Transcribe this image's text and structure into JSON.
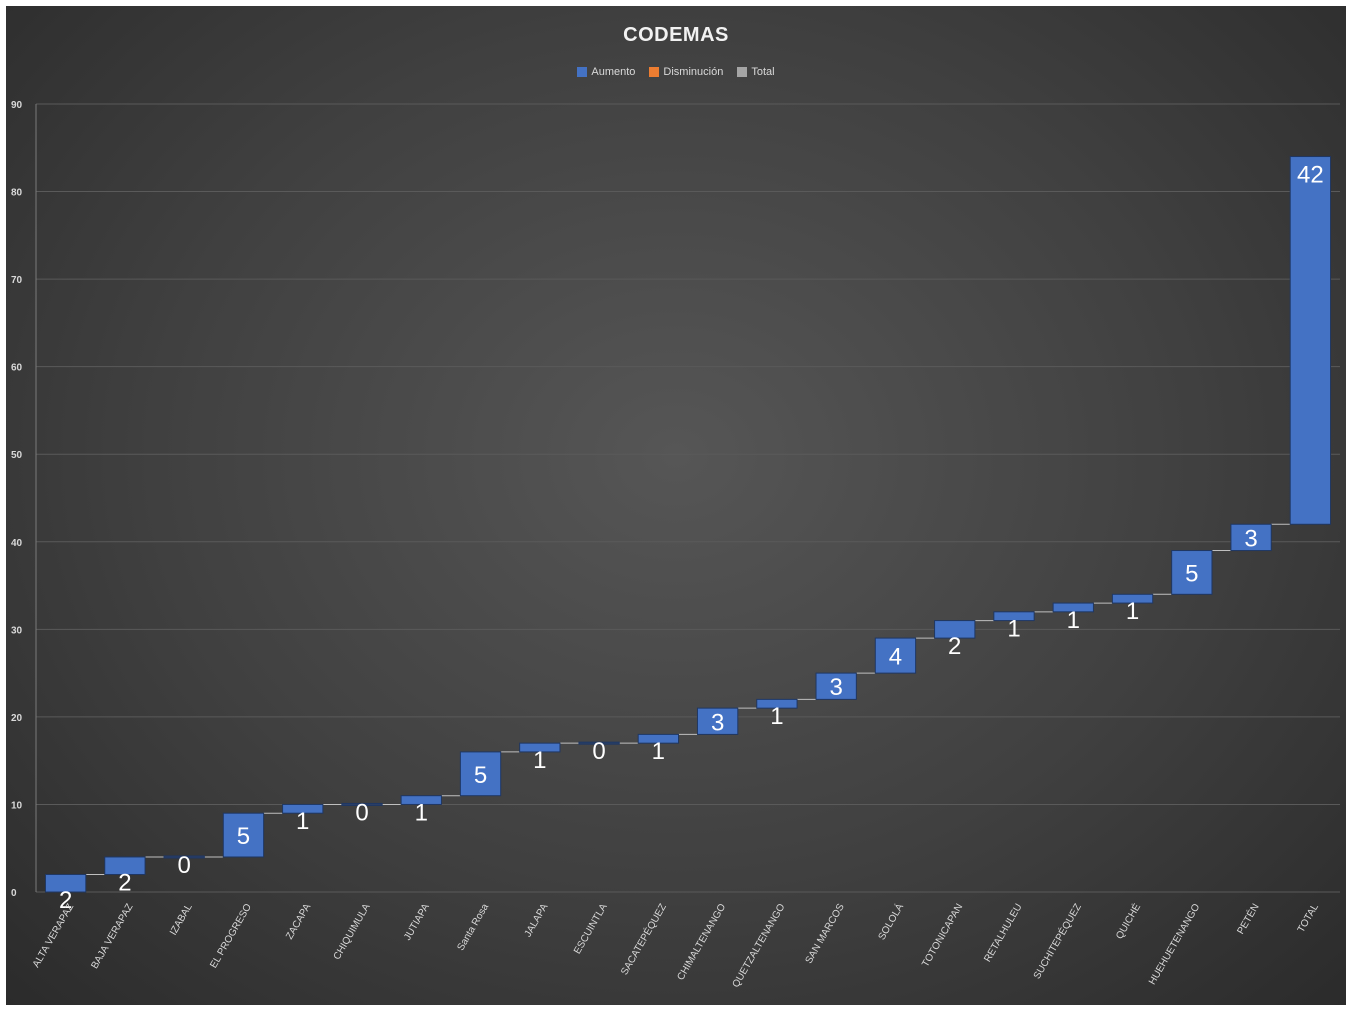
{
  "chart_data": {
    "type": "waterfall",
    "title": "CODEMAS",
    "legend": {
      "placement": "top-center",
      "items": [
        {
          "label": "Aumento",
          "color": "#4472c4"
        },
        {
          "label": "Disminución",
          "color": "#ed7d31"
        },
        {
          "label": "Total",
          "color": "#a5a5a5"
        }
      ]
    },
    "categories": [
      "ALTA VERAPAZ",
      "BAJA VERAPAZ",
      "IZABAL",
      "EL PROGRESO",
      "ZACAPA",
      "CHIQUIMULA",
      "JUTIAPA",
      "Santa Rosa",
      "JALAPA",
      "ESCUINTLA",
      "SACATEPÉQUEZ",
      "CHIMALTENANGO",
      "QUETZALTENANGO",
      "SAN MARCOS",
      "SOLOLÁ",
      "TOTONICAPAN",
      "RETALHULEU",
      "SUCHITEPÉQUEZ",
      "QUICHÉ",
      "HUEHUETENANGO",
      "PETÉN",
      "TOTAL"
    ],
    "values": [
      2,
      2,
      0,
      5,
      1,
      0,
      1,
      5,
      1,
      0,
      1,
      3,
      1,
      3,
      4,
      2,
      1,
      1,
      1,
      5,
      3,
      42
    ],
    "bases": [
      0,
      2,
      4,
      4,
      9,
      10,
      10,
      11,
      16,
      17,
      17,
      18,
      21,
      22,
      25,
      29,
      31,
      32,
      33,
      34,
      39,
      42
    ],
    "data_labels": [
      "2",
      "2",
      "0",
      "5",
      "1",
      "0",
      "1",
      "5",
      "1",
      "0",
      "1",
      "3",
      "1",
      "3",
      "4",
      "2",
      "1",
      "1",
      "1",
      "5",
      "3",
      "42"
    ],
    "ylim": [
      0,
      90
    ],
    "yticks": [
      "0",
      "10",
      "20",
      "30",
      "40",
      "50",
      "60",
      "70",
      "80",
      "90"
    ],
    "grid": true,
    "colors": {
      "increase": "#4472c4",
      "zero": "#2b3f66",
      "label": "#ffffff",
      "axis_text": "#d9d9d9",
      "grid": "#5a5a5a",
      "connector": "#bfbfbf"
    }
  }
}
